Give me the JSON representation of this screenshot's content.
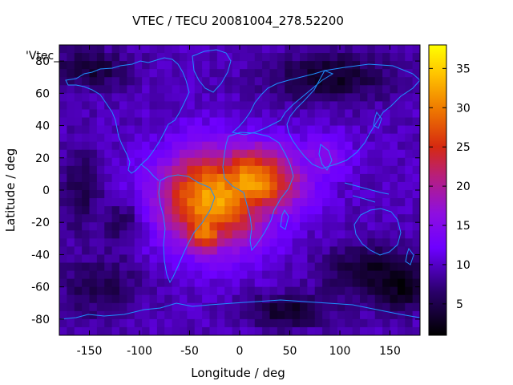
{
  "chart_data": {
    "type": "heatmap",
    "title": "VTEC / TECU 20081004_278.52200",
    "xlabel": "Longitude / deg",
    "ylabel": "Latitude / deg",
    "legend_label": "'Vtec_",
    "xlim": [
      -180,
      180
    ],
    "ylim": [
      -90,
      90
    ],
    "x_ticks": [
      -150,
      -100,
      -50,
      0,
      50,
      100,
      150
    ],
    "y_ticks": [
      -80,
      -60,
      -40,
      -20,
      0,
      20,
      40,
      60,
      80
    ],
    "colorbar": {
      "range": [
        1,
        38
      ],
      "ticks": [
        5,
        10,
        15,
        20,
        25,
        30,
        35
      ]
    },
    "field": {
      "background_level": 9.5,
      "peaks": [
        {
          "lon": -25,
          "lat": -5,
          "value": 33,
          "spread_lon": 55,
          "spread_lat": 30
        },
        {
          "lon": 10,
          "lat": 5,
          "value": 32,
          "spread_lon": 50,
          "spread_lat": 22
        },
        {
          "lon": -35,
          "lat": -25,
          "value": 30,
          "spread_lon": 25,
          "spread_lat": 15
        },
        {
          "lon": 30,
          "lat": 5,
          "value": 25,
          "spread_lon": 40,
          "spread_lat": 20
        },
        {
          "lon": -60,
          "lat": 0,
          "value": 20,
          "spread_lon": 25,
          "spread_lat": 20
        },
        {
          "lon": 80,
          "lat": 20,
          "value": 16,
          "spread_lon": 30,
          "spread_lat": 15
        }
      ],
      "dark_regions": [
        {
          "lon": 90,
          "lat": 70,
          "value": 3,
          "spread_lon": 60,
          "spread_lat": 15
        },
        {
          "lon": -150,
          "lat": 75,
          "value": 4,
          "spread_lon": 40,
          "spread_lat": 12
        },
        {
          "lon": 130,
          "lat": -50,
          "value": 3,
          "spread_lon": 45,
          "spread_lat": 15
        },
        {
          "lon": 160,
          "lat": -60,
          "value": 2,
          "spread_lon": 30,
          "spread_lat": 15
        },
        {
          "lon": -140,
          "lat": -60,
          "value": 5,
          "spread_lon": 40,
          "spread_lat": 18
        },
        {
          "lon": 50,
          "lat": -75,
          "value": 3,
          "spread_lon": 40,
          "spread_lat": 10
        },
        {
          "lon": -160,
          "lat": 0,
          "value": 5,
          "spread_lon": 20,
          "spread_lat": 25
        },
        {
          "lon": -120,
          "lat": -20,
          "value": 6,
          "spread_lon": 20,
          "spread_lat": 15
        }
      ]
    }
  },
  "colors": {
    "coastline": "#1e90ff",
    "axis": "#000000"
  }
}
